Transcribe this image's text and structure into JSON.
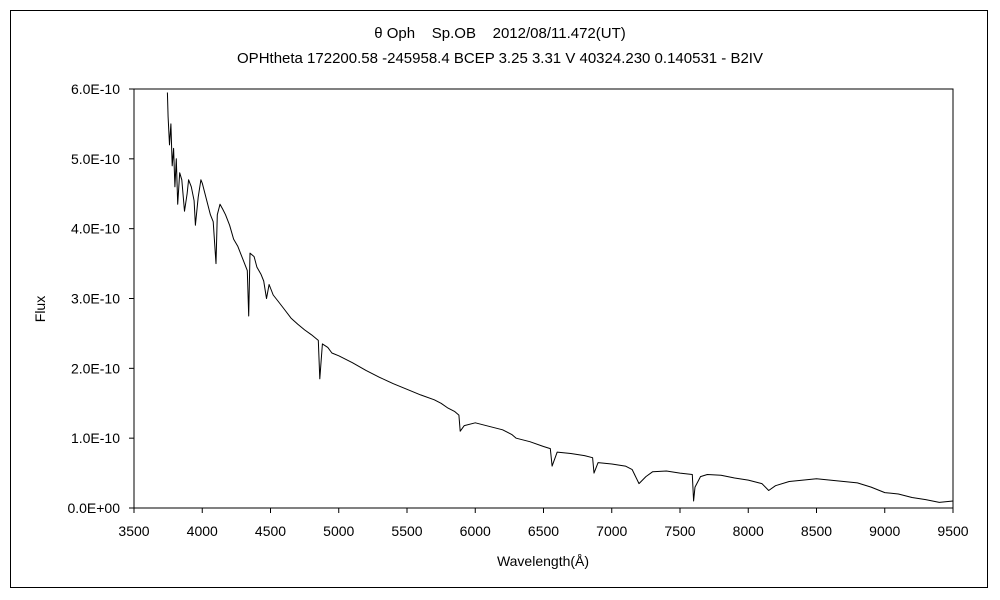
{
  "chart_data": {
    "type": "line",
    "title": "θ Oph    Sp.OB    2012/08/11.472(UT)",
    "subtitle": "OPHtheta 172200.58 -245958.4 BCEP 3.25 3.31 V 40324.230 0.140531 - B2IV",
    "xlabel": "Wavelength(Å)",
    "ylabel": "Flux",
    "xlim": [
      3500,
      9500
    ],
    "ylim": [
      0,
      6e-10
    ],
    "x_ticks": [
      3500,
      4000,
      4500,
      5000,
      5500,
      6000,
      6500,
      7000,
      7500,
      8000,
      8500,
      9000,
      9500
    ],
    "x_tick_labels": [
      "3500",
      "4000",
      "4500",
      "5000",
      "5500",
      "6000",
      "6500",
      "7000",
      "7500",
      "8000",
      "8500",
      "9000",
      "9500"
    ],
    "y_ticks": [
      0,
      1e-10,
      2e-10,
      3e-10,
      4e-10,
      5e-10,
      6e-10
    ],
    "y_tick_labels": [
      "0.0E+00",
      "1.0E-10",
      "2.0E-10",
      "3.0E-10",
      "4.0E-10",
      "5.0E-10",
      "6.0E-10"
    ],
    "grid": false,
    "legend": "none",
    "line_color": "#000000",
    "series": [
      {
        "x": [
          3745,
          3750,
          3760,
          3770,
          3780,
          3790,
          3800,
          3810,
          3820,
          3835,
          3850,
          3870,
          3889,
          3900,
          3920,
          3940,
          3950,
          3970,
          3990,
          4000,
          4020,
          4040,
          4060,
          4080,
          4101,
          4110,
          4130,
          4150,
          4170,
          4200,
          4230,
          4260,
          4300,
          4330,
          4340,
          4350,
          4380,
          4400,
          4430,
          4450,
          4471,
          4490,
          4520,
          4560,
          4600,
          4650,
          4700,
          4750,
          4800,
          4850,
          4861,
          4880,
          4920,
          4950,
          5000,
          5100,
          5200,
          5300,
          5400,
          5500,
          5600,
          5700,
          5750,
          5800,
          5850,
          5880,
          5890,
          5920,
          6000,
          6100,
          6200,
          6270,
          6300,
          6400,
          6500,
          6550,
          6563,
          6600,
          6700,
          6800,
          6860,
          6870,
          6900,
          7000,
          7100,
          7150,
          7200,
          7250,
          7300,
          7400,
          7500,
          7590,
          7600,
          7610,
          7650,
          7700,
          7800,
          7900,
          8000,
          8100,
          8150,
          8200,
          8300,
          8400,
          8500,
          8600,
          8700,
          8800,
          8900,
          9000,
          9100,
          9200,
          9300,
          9400,
          9500
        ],
        "y": [
          5.95e-10,
          5.6e-10,
          5.2e-10,
          5.5e-10,
          4.9e-10,
          5.15e-10,
          4.6e-10,
          5e-10,
          4.35e-10,
          4.8e-10,
          4.7e-10,
          4.25e-10,
          4.5e-10,
          4.7e-10,
          4.6e-10,
          4.4e-10,
          4.05e-10,
          4.45e-10,
          4.7e-10,
          4.65e-10,
          4.5e-10,
          4.35e-10,
          4.2e-10,
          4.1e-10,
          3.5e-10,
          4.2e-10,
          4.35e-10,
          4.28e-10,
          4.2e-10,
          4.05e-10,
          3.85e-10,
          3.75e-10,
          3.55e-10,
          3.4e-10,
          2.75e-10,
          3.65e-10,
          3.6e-10,
          3.45e-10,
          3.35e-10,
          3.25e-10,
          3e-10,
          3.2e-10,
          3.05e-10,
          2.95e-10,
          2.85e-10,
          2.72e-10,
          2.63e-10,
          2.55e-10,
          2.48e-10,
          2.4e-10,
          1.85e-10,
          2.35e-10,
          2.3e-10,
          2.22e-10,
          2.18e-10,
          2.08e-10,
          1.97e-10,
          1.87e-10,
          1.78e-10,
          1.7e-10,
          1.62e-10,
          1.55e-10,
          1.5e-10,
          1.43e-10,
          1.38e-10,
          1.33e-10,
          1.1e-10,
          1.18e-10,
          1.22e-10,
          1.17e-10,
          1.12e-10,
          1.05e-10,
          1e-10,
          9.5e-11,
          8.8e-11,
          8.5e-11,
          6e-11,
          8e-11,
          7.8e-11,
          7.5e-11,
          7.2e-11,
          5e-11,
          6.5e-11,
          6.3e-11,
          6e-11,
          5.5e-11,
          3.5e-11,
          4.5e-11,
          5.2e-11,
          5.3e-11,
          5e-11,
          4.8e-11,
          1e-11,
          3e-11,
          4.5e-11,
          4.8e-11,
          4.7e-11,
          4.3e-11,
          4e-11,
          3.5e-11,
          2.5e-11,
          3.2e-11,
          3.8e-11,
          4e-11,
          4.2e-11,
          4e-11,
          3.8e-11,
          3.6e-11,
          3e-11,
          2.2e-11,
          2e-11,
          1.5e-11,
          1.2e-11,
          8e-12,
          1e-11
        ]
      }
    ]
  }
}
